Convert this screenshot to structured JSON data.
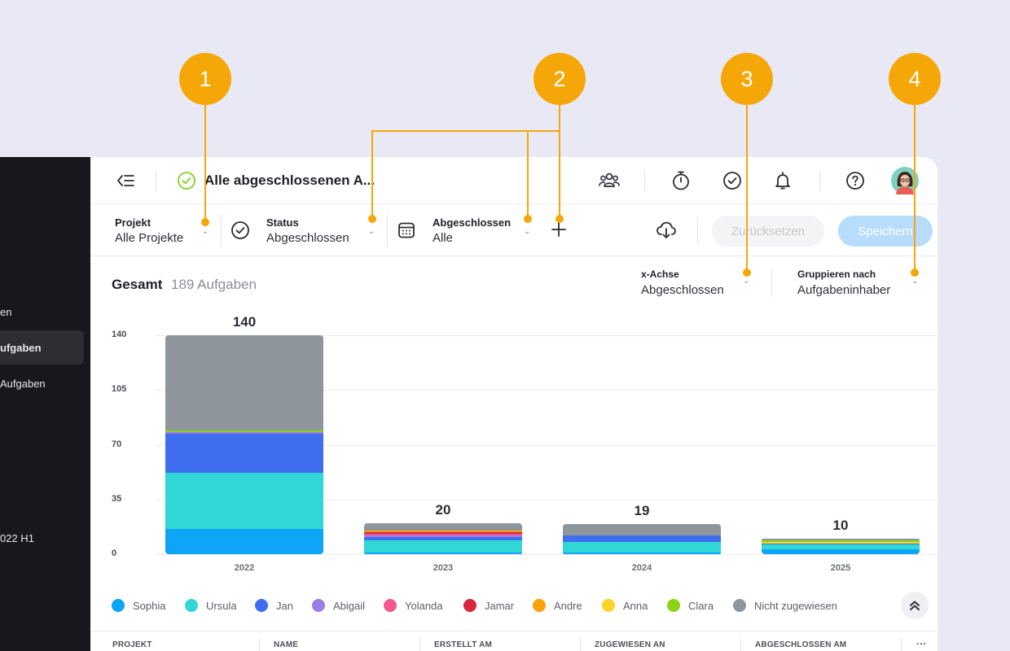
{
  "sidebar": {
    "items": [
      {
        "label": "en"
      },
      {
        "label": "ufgaben"
      },
      {
        "label": "Aufgaben"
      },
      {
        "label": "022 H1"
      }
    ]
  },
  "header": {
    "title": "Alle abgeschlossenen A..."
  },
  "filters": {
    "projekt": {
      "label": "Projekt",
      "value": "Alle Projekte"
    },
    "status": {
      "label": "Status",
      "value": "Abgeschlossen"
    },
    "abgeschlossen": {
      "label": "Abgeschlossen",
      "value": "Alle"
    },
    "reset_label": "Zurücksetzen",
    "save_label": "Speichern"
  },
  "summary": {
    "label": "Gesamt",
    "count": "189 Aufgaben"
  },
  "axis_controls": {
    "x_axis": {
      "label": "x-Achse",
      "value": "Abgeschlossen"
    },
    "group_by": {
      "label": "Gruppieren nach",
      "value": "Aufgabeninhaber"
    }
  },
  "chart_data": {
    "type": "bar",
    "stacked": true,
    "categories": [
      "2022",
      "2023",
      "2024",
      "2025"
    ],
    "totals": [
      140,
      20,
      19,
      10
    ],
    "ylim": [
      0,
      140
    ],
    "yticks": [
      0,
      35,
      70,
      105,
      140
    ],
    "grid": true,
    "legend_position": "bottom",
    "series": [
      {
        "name": "Sophia",
        "color": "#0ea5f9",
        "values": [
          16,
          1,
          1,
          3
        ]
      },
      {
        "name": "Ursula",
        "color": "#30d7d4",
        "values": [
          36,
          8,
          7,
          3
        ]
      },
      {
        "name": "Jan",
        "color": "#3f6ef1",
        "values": [
          25,
          2,
          4,
          1
        ]
      },
      {
        "name": "Abigail",
        "color": "#9a7ee8",
        "values": [
          1,
          1,
          0,
          0
        ]
      },
      {
        "name": "Yolanda",
        "color": "#f3598f",
        "values": [
          0,
          1,
          0,
          0
        ]
      },
      {
        "name": "Jamar",
        "color": "#d7263d",
        "values": [
          0,
          1,
          0,
          0
        ]
      },
      {
        "name": "Andre",
        "color": "#f7a20b",
        "values": [
          0,
          1,
          0,
          0
        ]
      },
      {
        "name": "Anna",
        "color": "#fdd329",
        "values": [
          0,
          0,
          0,
          1
        ]
      },
      {
        "name": "Clara",
        "color": "#8bd415",
        "values": [
          1,
          0,
          0,
          1
        ]
      },
      {
        "name": "Nicht zugewiesen",
        "color": "#8e969c",
        "values": [
          61,
          5,
          7,
          1
        ]
      }
    ]
  },
  "table": {
    "columns": [
      "PROJEKT",
      "NAME",
      "ERSTELLT AM",
      "ZUGEWIESEN AN",
      "ABGESCHLOSSEN AM"
    ],
    "more": "···"
  },
  "callouts": [
    "1",
    "2",
    "3",
    "4"
  ]
}
